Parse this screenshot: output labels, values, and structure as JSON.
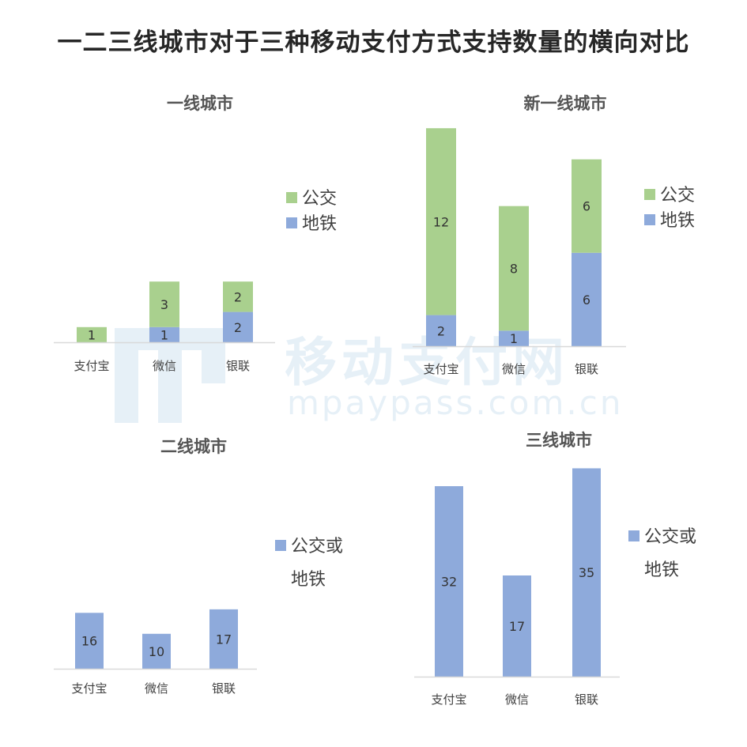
{
  "title": "一二三线城市对于三种移动支付方式支持数量的横向对比",
  "watermark": {
    "cn": "移动支付网",
    "en": "mpaypass.com.cn"
  },
  "colors": {
    "green": "#a9d08e",
    "blue": "#8eaadb",
    "axis": "#d9d9d9"
  },
  "chart_data": [
    {
      "type": "bar",
      "stacked": true,
      "title": "一线城市",
      "categories": [
        "支付宝",
        "微信",
        "银联"
      ],
      "series": [
        {
          "name": "地铁",
          "color": "#8eaadb",
          "values": [
            0,
            1,
            2
          ]
        },
        {
          "name": "公交",
          "color": "#a9d08e",
          "values": [
            1,
            3,
            2
          ]
        }
      ],
      "data_labels": true,
      "legend": [
        "公交",
        "地铁"
      ],
      "legend_position": "right"
    },
    {
      "type": "bar",
      "stacked": true,
      "title": "新一线城市",
      "categories": [
        "支付宝",
        "微信",
        "银联"
      ],
      "series": [
        {
          "name": "地铁",
          "color": "#8eaadb",
          "values": [
            2,
            1,
            6
          ]
        },
        {
          "name": "公交",
          "color": "#a9d08e",
          "values": [
            12,
            8,
            6
          ]
        }
      ],
      "data_labels": true,
      "legend": [
        "公交",
        "地铁"
      ],
      "legend_position": "right"
    },
    {
      "type": "bar",
      "stacked": false,
      "title": "二线城市",
      "categories": [
        "支付宝",
        "微信",
        "银联"
      ],
      "series": [
        {
          "name": "公交或地铁",
          "color": "#8eaadb",
          "values": [
            16,
            10,
            17
          ]
        }
      ],
      "data_labels": true,
      "legend": [
        "公交或",
        "地铁"
      ],
      "legend_position": "right"
    },
    {
      "type": "bar",
      "stacked": false,
      "title": "三线城市",
      "categories": [
        "支付宝",
        "微信",
        "银联"
      ],
      "series": [
        {
          "name": "公交或地铁",
          "color": "#8eaadb",
          "values": [
            32,
            17,
            35
          ]
        }
      ],
      "data_labels": true,
      "legend": [
        "公交或",
        "地铁"
      ],
      "legend_position": "right"
    }
  ]
}
